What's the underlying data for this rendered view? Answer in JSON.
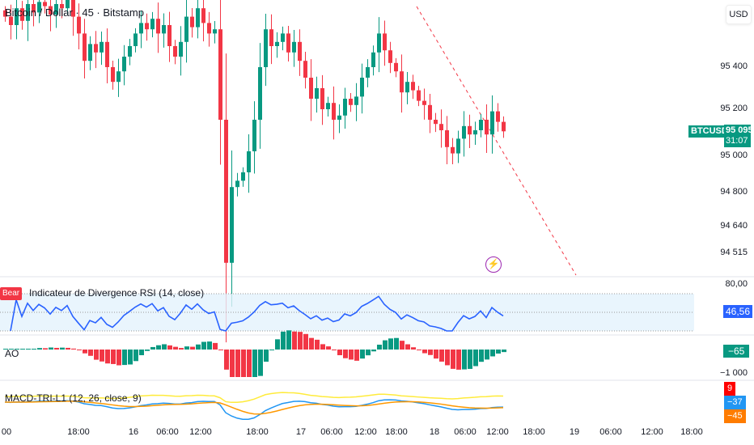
{
  "header": {
    "title": "Bitcoin / Dollar · 45 · Bitstamp",
    "currency": "USD"
  },
  "price_axis": {
    "ticks": [
      "95 400",
      "95 200",
      "95 000",
      "94 800",
      "94 640",
      "94 515"
    ],
    "symbol_tag": "BTCUSD",
    "last_price": "95 095",
    "countdown": "31:07"
  },
  "colors": {
    "up": "#089981",
    "down": "#f23645",
    "rsi": "#2962ff",
    "dash": "#f23645",
    "alert": "#9c27b0"
  },
  "candles": {
    "price_top": 95720,
    "price_bottom": 94400,
    "closes": [
      95640,
      95600,
      95680,
      95620,
      95700,
      95660,
      95710,
      95690,
      95650,
      95700,
      95680,
      95720,
      95640,
      95560,
      95430,
      95510,
      95470,
      95520,
      95400,
      95330,
      95380,
      95450,
      95500,
      95560,
      95610,
      95580,
      95630,
      95560,
      95600,
      95500,
      95450,
      95520,
      95640,
      95590,
      95680,
      95610,
      95560,
      95580,
      95150,
      94470,
      94830,
      94860,
      94900,
      95000,
      95150,
      95400,
      95580,
      95500,
      95520,
      95560,
      95470,
      95520,
      95430,
      95350,
      95250,
      95300,
      95200,
      95230,
      95150,
      95170,
      95250,
      95220,
      95260,
      95350,
      95400,
      95470,
      95560,
      95480,
      95420,
      95380,
      95280,
      95330,
      95290,
      95240,
      95220,
      95150,
      95130,
      95100,
      95020,
      94990,
      95060,
      95120,
      95080,
      95100,
      95150,
      95080,
      95190,
      95140,
      95095
    ]
  },
  "rsi": {
    "label": "Indicateur de Divergence RSI (14, close)",
    "badge": "Bear",
    "axis_top": "80,00",
    "value": "46,56"
  },
  "ao": {
    "label": "AO",
    "value": "−65",
    "axis_min": "−1 000"
  },
  "macd": {
    "label": "MACD-TRI-L1 (12, 26, close, 9)",
    "values": [
      "9",
      "−37",
      "−45"
    ]
  },
  "time_axis": [
    "00",
    "18:00",
    "16",
    "06:00",
    "12:00",
    "18:00",
    "17",
    "06:00",
    "12:00",
    "18:00",
    "18",
    "06:00",
    "12:00",
    "18:00",
    "19",
    "06:00",
    "12:00",
    "18:00"
  ]
}
